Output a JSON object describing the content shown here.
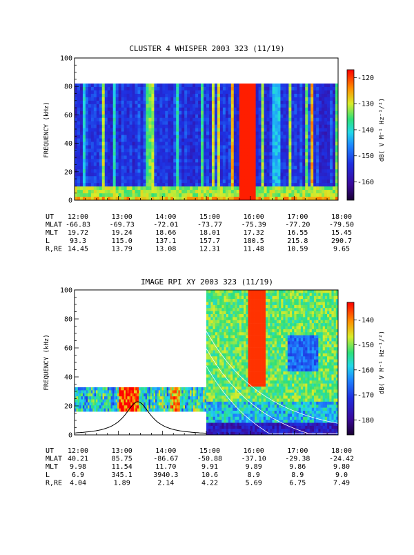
{
  "chart_data": [
    {
      "type": "heatmap",
      "title": "CLUSTER 4 WHISPER 2003 323 (11/19)",
      "ylabel": "FREQUENCY (kHz)",
      "ylim": [
        0,
        100
      ],
      "y_ticks": [
        "0",
        "20",
        "40",
        "60",
        "80",
        "100"
      ],
      "data_ylim": [
        0,
        80
      ],
      "colorbar": {
        "label": "dB( V M⁻¹ Hz⁻¹/²)",
        "range": [
          -167,
          -117
        ],
        "ticks": [
          "-120",
          "-130",
          "-140",
          "-150",
          "-160"
        ]
      },
      "ephemeris": {
        "rows": [
          {
            "label": "UT",
            "values": [
              "12:00",
              "13:00",
              "14:00",
              "15:00",
              "16:00",
              "17:00",
              "18:00"
            ]
          },
          {
            "label": "MLAT",
            "values": [
              "-66.83",
              "-69.73",
              "-72.01",
              "-73.77",
              "-75.39",
              "-77.20",
              "-79.50"
            ]
          },
          {
            "label": "MLT",
            "values": [
              "19.72",
              "19.24",
              "18.66",
              "18.01",
              "17.32",
              "16.55",
              "15.45"
            ]
          },
          {
            "label": "L",
            "values": [
              "93.3",
              "115.0",
              "137.1",
              "157.7",
              "180.5",
              "215.8",
              "290.7"
            ]
          },
          {
            "label": "R,RE",
            "values": [
              "14.45",
              "13.79",
              "13.08",
              "12.31",
              "11.48",
              "10.59",
              "9.65"
            ]
          }
        ]
      }
    },
    {
      "type": "heatmap",
      "title": "IMAGE RPI XY 2003 323 (11/19)",
      "ylabel": "FREQUENCY (kHz)",
      "ylim": [
        0,
        100
      ],
      "y_ticks": [
        "0",
        "20",
        "40",
        "60",
        "80",
        "100"
      ],
      "colorbar": {
        "label": "dB( V M⁻¹ Hz⁻¹/²)",
        "range": [
          -186,
          -133
        ],
        "ticks": [
          "-140",
          "-150",
          "-160",
          "-170",
          "-180"
        ]
      },
      "ephemeris": {
        "rows": [
          {
            "label": "UT",
            "values": [
              "12:00",
              "13:00",
              "14:00",
              "15:00",
              "16:00",
              "17:00",
              "18:00"
            ]
          },
          {
            "label": "MLAT",
            "values": [
              "40.21",
              "85.75",
              "-86.67",
              "-50.88",
              "-37.10",
              "-29.38",
              "-24.42"
            ]
          },
          {
            "label": "MLT",
            "values": [
              "9.98",
              "11.54",
              "11.70",
              "9.91",
              "9.89",
              "9.86",
              "9.80"
            ]
          },
          {
            "label": "L",
            "values": [
              "6.9",
              "345.1",
              "3940.3",
              "10.6",
              "8.9",
              "8.9",
              "9.0"
            ]
          },
          {
            "label": "R,RE",
            "values": [
              "4.04",
              "1.89",
              "2.14",
              "4.22",
              "5.69",
              "6.75",
              "7.49"
            ]
          }
        ]
      }
    }
  ]
}
